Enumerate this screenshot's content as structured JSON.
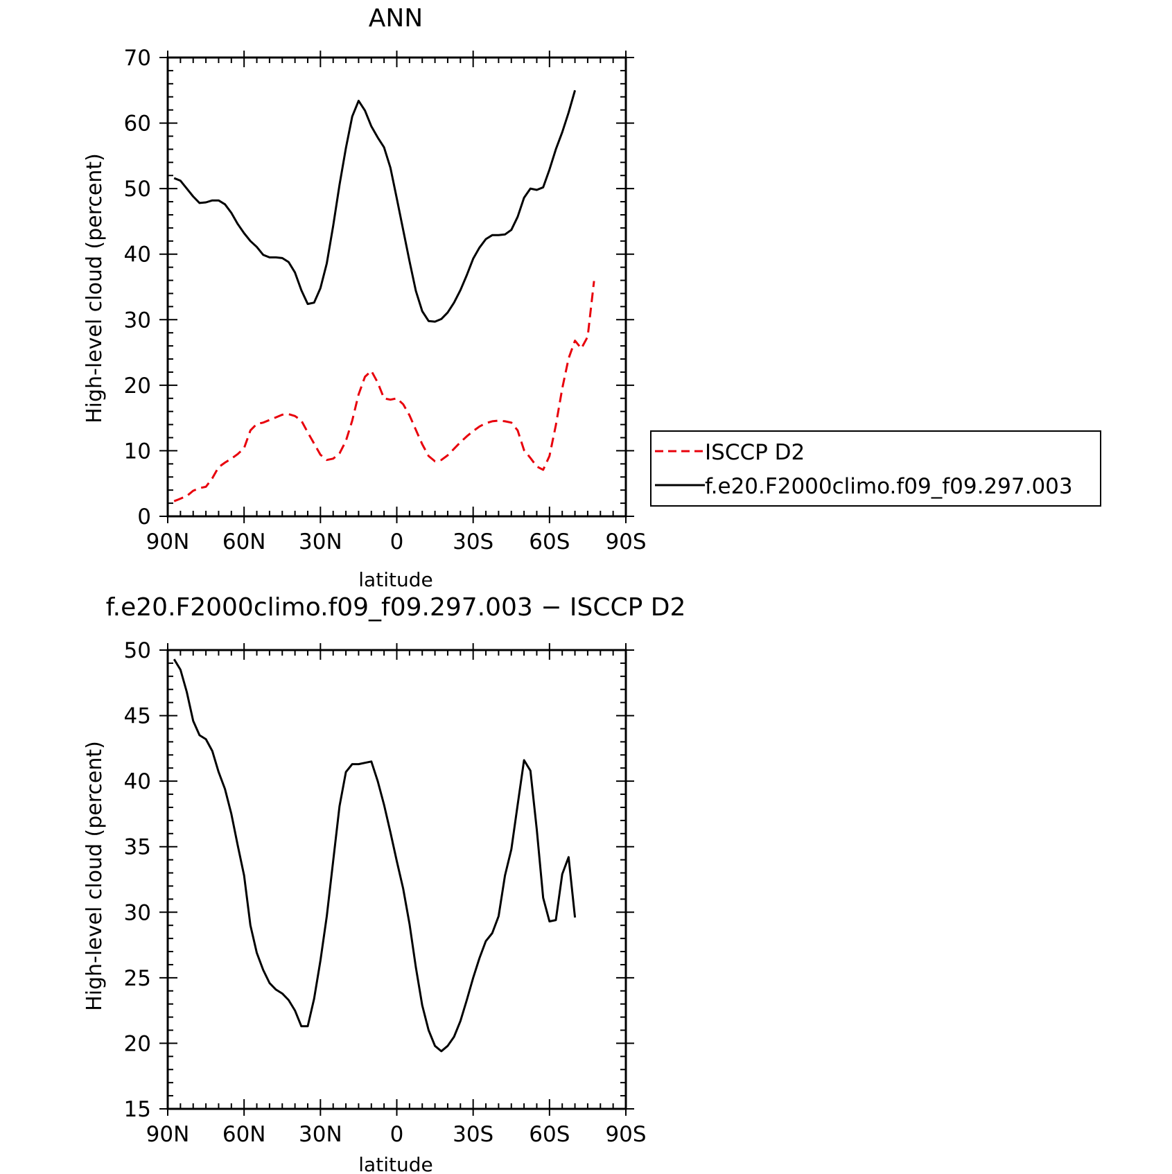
{
  "chart_data": [
    {
      "type": "line",
      "title": "ANN",
      "xlabel": "latitude",
      "ylabel": "High-level cloud (percent)",
      "xlim": [
        90,
        -90
      ],
      "ylim": [
        0,
        70
      ],
      "xticks": [
        {
          "value": 90,
          "label": "90N"
        },
        {
          "value": 60,
          "label": "60N"
        },
        {
          "value": 30,
          "label": "30N"
        },
        {
          "value": 0,
          "label": "0"
        },
        {
          "value": -30,
          "label": "30S"
        },
        {
          "value": -60,
          "label": "60S"
        },
        {
          "value": -90,
          "label": "90S"
        }
      ],
      "yticks": [
        0,
        10,
        20,
        30,
        40,
        50,
        60,
        70
      ],
      "legend": {
        "position": "right",
        "entries": [
          {
            "label": "ISCCP D2",
            "color": "#e8000b",
            "dash": true
          },
          {
            "label": "f.e20.F2000climo.f09_f09.297.003",
            "color": "#000000",
            "dash": false
          }
        ]
      },
      "series": [
        {
          "name": "ISCCP D2",
          "color": "#e8000b",
          "dashed": true,
          "points": [
            [
              87.5,
              2.3
            ],
            [
              85,
              2.7
            ],
            [
              82.5,
              3.1
            ],
            [
              80,
              3.9
            ],
            [
              77.5,
              4.3
            ],
            [
              75,
              4.5
            ],
            [
              72.5,
              5.8
            ],
            [
              70,
              7.5
            ],
            [
              67.5,
              8.2
            ],
            [
              65,
              8.8
            ],
            [
              62.5,
              9.5
            ],
            [
              60,
              10.4
            ],
            [
              57.5,
              13.1
            ],
            [
              55,
              14.1
            ],
            [
              52.5,
              14.3
            ],
            [
              50,
              14.7
            ],
            [
              47.5,
              15.1
            ],
            [
              45,
              15.5
            ],
            [
              42.5,
              15.6
            ],
            [
              40,
              15.3
            ],
            [
              37.5,
              14.6
            ],
            [
              35,
              12.8
            ],
            [
              32.5,
              11.1
            ],
            [
              30,
              9.4
            ],
            [
              27.5,
              8.6
            ],
            [
              25,
              8.8
            ],
            [
              22.5,
              9.6
            ],
            [
              20,
              11.5
            ],
            [
              17.5,
              14.6
            ],
            [
              15,
              18.6
            ],
            [
              12.5,
              21.3
            ],
            [
              10,
              22.2
            ],
            [
              7.5,
              20.4
            ],
            [
              5,
              18.0
            ],
            [
              2.5,
              17.8
            ],
            [
              0,
              18.0
            ],
            [
              -2.5,
              17.1
            ],
            [
              -5,
              15.4
            ],
            [
              -7.5,
              13.2
            ],
            [
              -10,
              11.0
            ],
            [
              -12.5,
              9.2
            ],
            [
              -15,
              8.4
            ],
            [
              -17.5,
              8.6
            ],
            [
              -20,
              9.3
            ],
            [
              -22.5,
              10.3
            ],
            [
              -25,
              11.3
            ],
            [
              -27.5,
              12.2
            ],
            [
              -30,
              13.0
            ],
            [
              -32.5,
              13.7
            ],
            [
              -35,
              14.2
            ],
            [
              -37.5,
              14.5
            ],
            [
              -40,
              14.6
            ],
            [
              -42.5,
              14.5
            ],
            [
              -45,
              14.3
            ],
            [
              -47.5,
              13.1
            ],
            [
              -50,
              10.1
            ],
            [
              -52.5,
              8.9
            ],
            [
              -55,
              7.6
            ],
            [
              -57.5,
              7.1
            ],
            [
              -60,
              9.2
            ],
            [
              -62.5,
              13.9
            ],
            [
              -65,
              19.5
            ],
            [
              -67.5,
              24.1
            ],
            [
              -70,
              26.8
            ],
            [
              -72.5,
              25.6
            ],
            [
              -75,
              27.4
            ],
            [
              -77.5,
              35.9
            ]
          ]
        },
        {
          "name": "f.e20.F2000climo.f09_f09.297.003",
          "color": "#000000",
          "dashed": false,
          "points": [
            [
              87.5,
              51.6
            ],
            [
              85,
              51.2
            ],
            [
              82.5,
              50.0
            ],
            [
              80,
              48.8
            ],
            [
              77.5,
              47.8
            ],
            [
              75,
              47.9
            ],
            [
              72.5,
              48.2
            ],
            [
              70,
              48.2
            ],
            [
              67.5,
              47.6
            ],
            [
              65,
              46.3
            ],
            [
              62.5,
              44.6
            ],
            [
              60,
              43.2
            ],
            [
              57.5,
              42.0
            ],
            [
              55,
              41.1
            ],
            [
              52.5,
              39.9
            ],
            [
              50,
              39.5
            ],
            [
              47.5,
              39.5
            ],
            [
              45,
              39.4
            ],
            [
              42.5,
              38.8
            ],
            [
              40,
              37.2
            ],
            [
              37.5,
              34.5
            ],
            [
              35,
              32.4
            ],
            [
              32.5,
              32.6
            ],
            [
              30,
              34.8
            ],
            [
              27.5,
              38.6
            ],
            [
              25,
              44.3
            ],
            [
              22.5,
              50.6
            ],
            [
              20,
              56.2
            ],
            [
              17.5,
              61.0
            ],
            [
              15,
              63.4
            ],
            [
              12.5,
              61.9
            ],
            [
              10,
              59.5
            ],
            [
              7.5,
              57.8
            ],
            [
              5,
              56.3
            ],
            [
              2.5,
              53.2
            ],
            [
              0,
              48.5
            ],
            [
              -2.5,
              43.7
            ],
            [
              -5,
              38.9
            ],
            [
              -7.5,
              34.4
            ],
            [
              -10,
              31.3
            ],
            [
              -12.5,
              29.8
            ],
            [
              -15,
              29.7
            ],
            [
              -17.5,
              30.1
            ],
            [
              -20,
              31.1
            ],
            [
              -22.5,
              32.6
            ],
            [
              -25,
              34.5
            ],
            [
              -27.5,
              36.8
            ],
            [
              -30,
              39.3
            ],
            [
              -32.5,
              41.0
            ],
            [
              -35,
              42.3
            ],
            [
              -37.5,
              42.9
            ],
            [
              -40,
              42.9
            ],
            [
              -42.5,
              43.0
            ],
            [
              -45,
              43.7
            ],
            [
              -47.5,
              45.7
            ],
            [
              -50,
              48.6
            ],
            [
              -52.5,
              50.0
            ],
            [
              -55,
              49.8
            ],
            [
              -57.5,
              50.2
            ],
            [
              -60,
              52.9
            ],
            [
              -62.5,
              56.0
            ],
            [
              -65,
              58.6
            ],
            [
              -67.5,
              61.6
            ],
            [
              -70,
              65.0
            ]
          ]
        }
      ]
    },
    {
      "type": "line",
      "title": "f.e20.F2000climo.f09_f09.297.003 − ISCCP D2",
      "xlabel": "latitude",
      "ylabel": "High-level cloud (percent)",
      "xlim": [
        90,
        -90
      ],
      "ylim": [
        15,
        50
      ],
      "xticks": [
        {
          "value": 90,
          "label": "90N"
        },
        {
          "value": 60,
          "label": "60N"
        },
        {
          "value": 30,
          "label": "30N"
        },
        {
          "value": 0,
          "label": "0"
        },
        {
          "value": -30,
          "label": "30S"
        },
        {
          "value": -60,
          "label": "60S"
        },
        {
          "value": -90,
          "label": "90S"
        }
      ],
      "yticks": [
        15,
        20,
        25,
        30,
        35,
        40,
        45,
        50
      ],
      "series": [
        {
          "color": "#000000",
          "dashed": false,
          "points": [
            [
              87.5,
              49.3
            ],
            [
              85,
              48.5
            ],
            [
              82.5,
              46.8
            ],
            [
              80,
              44.6
            ],
            [
              77.5,
              43.5
            ],
            [
              75,
              43.2
            ],
            [
              72.5,
              42.3
            ],
            [
              70,
              40.7
            ],
            [
              67.5,
              39.4
            ],
            [
              65,
              37.5
            ],
            [
              62.5,
              35.1
            ],
            [
              60,
              32.8
            ],
            [
              57.5,
              29.0
            ],
            [
              55,
              26.9
            ],
            [
              52.5,
              25.6
            ],
            [
              50,
              24.6
            ],
            [
              47.5,
              24.1
            ],
            [
              45,
              23.8
            ],
            [
              42.5,
              23.3
            ],
            [
              40,
              22.5
            ],
            [
              37.5,
              21.3
            ],
            [
              35,
              21.3
            ],
            [
              32.5,
              23.4
            ],
            [
              30,
              26.3
            ],
            [
              27.5,
              29.7
            ],
            [
              25,
              33.9
            ],
            [
              22.5,
              38.1
            ],
            [
              20,
              40.7
            ],
            [
              17.5,
              41.3
            ],
            [
              15,
              41.3
            ],
            [
              12.5,
              41.4
            ],
            [
              10,
              41.5
            ],
            [
              7.5,
              40.0
            ],
            [
              5,
              38.2
            ],
            [
              2.5,
              36.1
            ],
            [
              0,
              33.9
            ],
            [
              -2.5,
              31.8
            ],
            [
              -5,
              29.1
            ],
            [
              -7.5,
              25.8
            ],
            [
              -10,
              22.9
            ],
            [
              -12.5,
              21.0
            ],
            [
              -15,
              19.8
            ],
            [
              -17.5,
              19.4
            ],
            [
              -20,
              19.8
            ],
            [
              -22.5,
              20.5
            ],
            [
              -25,
              21.7
            ],
            [
              -27.5,
              23.3
            ],
            [
              -30,
              25.0
            ],
            [
              -32.5,
              26.5
            ],
            [
              -35,
              27.8
            ],
            [
              -37.5,
              28.4
            ],
            [
              -40,
              29.7
            ],
            [
              -42.5,
              32.8
            ],
            [
              -45,
              34.8
            ],
            [
              -47.5,
              38.2
            ],
            [
              -50,
              41.6
            ],
            [
              -52.5,
              40.8
            ],
            [
              -55,
              36.3
            ],
            [
              -57.5,
              31.1
            ],
            [
              -60,
              29.3
            ],
            [
              -62.5,
              29.4
            ],
            [
              -65,
              32.9
            ],
            [
              -67.5,
              34.2
            ],
            [
              -70,
              29.6
            ]
          ]
        }
      ]
    }
  ]
}
